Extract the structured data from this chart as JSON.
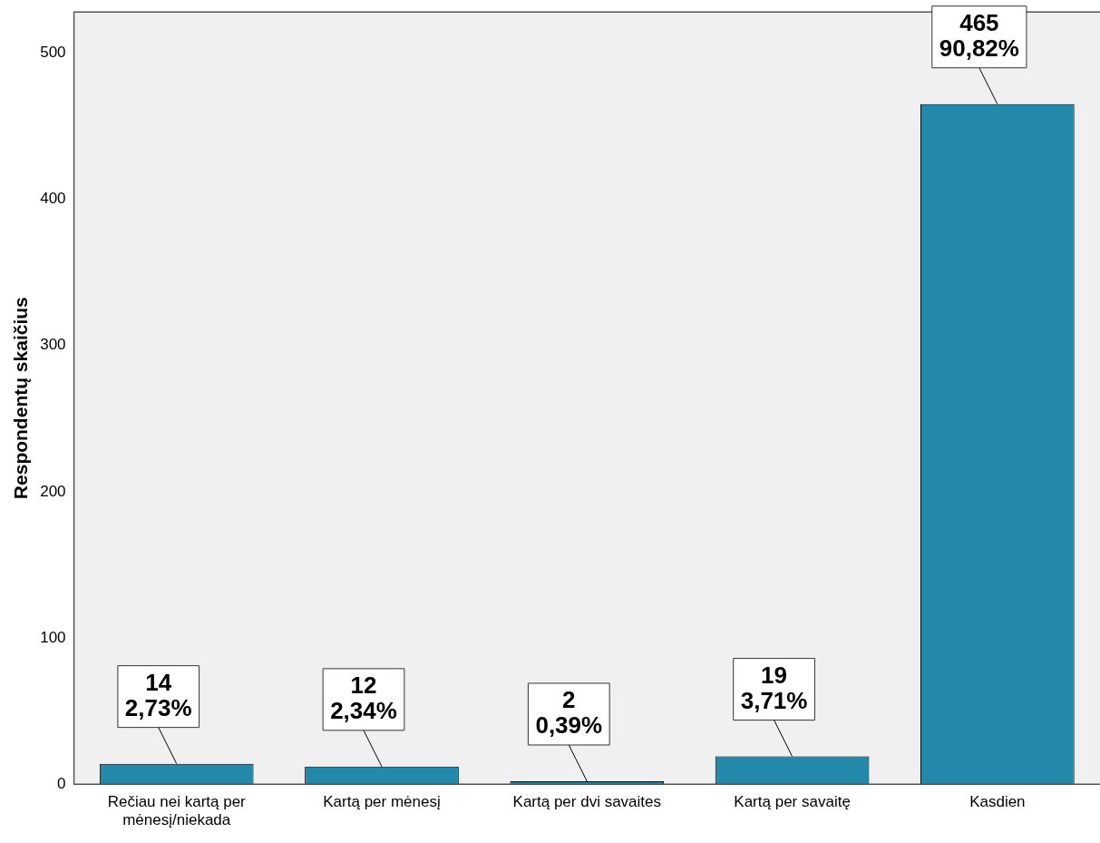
{
  "chart_data": {
    "type": "bar",
    "ylabel": "Respondentų skaičius",
    "categories": [
      "Rečiau nei kartą per mėnesį/niekada",
      "Kartą per mėnesį",
      "Kartą per dvi savaites",
      "Kartą per savaitę",
      "Kasdien"
    ],
    "values": [
      14,
      12,
      2,
      19,
      465
    ],
    "value_labels": [
      "14\n2,73%",
      "12\n2,34%",
      "2\n0,39%",
      "19\n3,71%",
      "465\n90,82%"
    ],
    "color": "#2389ab",
    "ylim": [
      0,
      528
    ],
    "yticks": [
      0,
      100,
      200,
      300,
      400,
      500
    ],
    "grid": false,
    "legend": false
  }
}
